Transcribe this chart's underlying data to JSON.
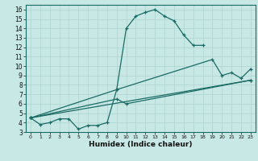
{
  "xlabel": "Humidex (Indice chaleur)",
  "ylabel": "",
  "bg_color": "#c8e8e5",
  "line_color": "#1a6b65",
  "grid_color": "#aed4d0",
  "xlim": [
    -0.5,
    23.5
  ],
  "ylim": [
    3,
    16.5
  ],
  "yticks": [
    3,
    4,
    5,
    6,
    7,
    8,
    9,
    10,
    11,
    12,
    13,
    14,
    15,
    16
  ],
  "xticks": [
    0,
    1,
    2,
    3,
    4,
    5,
    6,
    7,
    8,
    9,
    10,
    11,
    12,
    13,
    14,
    15,
    16,
    17,
    18,
    19,
    20,
    21,
    22,
    23
  ],
  "lines": [
    {
      "x": [
        0,
        1,
        2,
        3,
        4,
        5,
        6,
        7,
        8,
        9,
        10,
        11,
        12,
        13,
        14,
        15,
        16,
        17,
        18
      ],
      "y": [
        4.5,
        3.8,
        4.0,
        4.4,
        4.4,
        3.3,
        3.7,
        3.7,
        4.0,
        7.5,
        14.0,
        15.3,
        15.7,
        16.0,
        15.3,
        14.8,
        13.3,
        12.2,
        12.2
      ]
    },
    {
      "x": [
        0,
        9,
        19,
        20,
        21,
        22,
        23
      ],
      "y": [
        4.5,
        7.5,
        10.7,
        9.0,
        9.3,
        8.7,
        9.7
      ]
    },
    {
      "x": [
        0,
        23
      ],
      "y": [
        4.5,
        8.5
      ]
    },
    {
      "x": [
        0,
        9,
        10,
        23
      ],
      "y": [
        4.5,
        6.5,
        6.0,
        8.5
      ]
    }
  ]
}
